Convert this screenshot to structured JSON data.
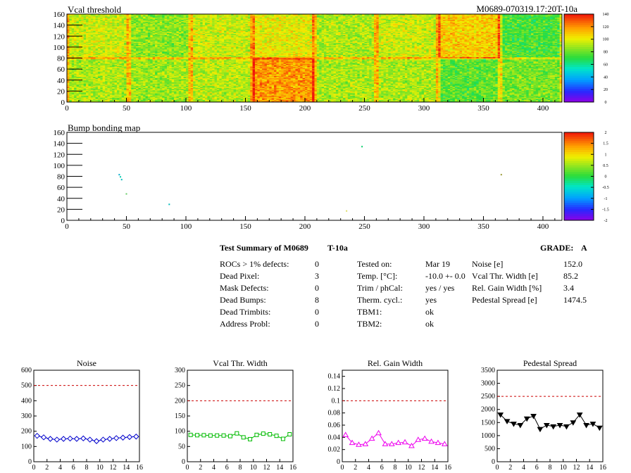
{
  "module_id": "M0689-070319.17:20T-10a",
  "colors": {
    "dashed_ref": "#cc0000",
    "noise": "#0000cc",
    "vcal": "#00bb00",
    "gain": "#ee00ee",
    "pedestal": "#000000"
  },
  "chart_data": [
    {
      "type": "heatmap",
      "title": "Vcal threshold",
      "xlim": [
        0,
        416
      ],
      "ylim": [
        0,
        160
      ],
      "x_ticks": [
        "0",
        "50",
        "100",
        "150",
        "200",
        "250",
        "300",
        "350",
        "400"
      ],
      "y_ticks": [
        "0",
        "20",
        "40",
        "60",
        "80",
        "100",
        "120",
        "140",
        "160"
      ],
      "z_range": [
        0,
        140
      ],
      "palette_ticks": [
        "0",
        "20",
        "40",
        "60",
        "80",
        "100",
        "120",
        "140"
      ],
      "roc_mean_upper": [
        95,
        85,
        95,
        100,
        90,
        95,
        108,
        75
      ],
      "roc_mean_lower": [
        90,
        88,
        92,
        118,
        90,
        90,
        78,
        82
      ]
    },
    {
      "type": "heatmap",
      "title": "Bump bonding map",
      "xlim": [
        0,
        416
      ],
      "ylim": [
        0,
        160
      ],
      "x_ticks": [
        "0",
        "50",
        "100",
        "150",
        "200",
        "250",
        "300",
        "350",
        "400"
      ],
      "y_ticks": [
        "0",
        "20",
        "40",
        "60",
        "80",
        "100",
        "120",
        "140",
        "160"
      ],
      "z_range": [
        -2,
        2
      ],
      "palette_ticks": [
        "2",
        "1.5",
        "1",
        "0.5",
        "0",
        "-0.5",
        "-1",
        "-1.5",
        "-2"
      ],
      "points": [
        {
          "x": 44,
          "y": 83,
          "color": "#00aacc"
        },
        {
          "x": 45,
          "y": 79,
          "color": "#00ccaa"
        },
        {
          "x": 46,
          "y": 74,
          "color": "#00bbbb"
        },
        {
          "x": 50,
          "y": 48,
          "color": "#66cc66"
        },
        {
          "x": 86,
          "y": 29,
          "color": "#00bbbb"
        },
        {
          "x": 235,
          "y": 17,
          "color": "#dddd66"
        },
        {
          "x": 248,
          "y": 134,
          "color": "#00cc66"
        },
        {
          "x": 365,
          "y": 83,
          "color": "#999933"
        }
      ]
    },
    {
      "type": "line",
      "title": "Noise",
      "xlim": [
        0,
        16
      ],
      "ylim": [
        0,
        600
      ],
      "x_ticks": [
        "0",
        "2",
        "4",
        "6",
        "8",
        "10",
        "12",
        "14",
        "16"
      ],
      "y_ticks": [
        "0",
        "100",
        "200",
        "300",
        "400",
        "500",
        "600"
      ],
      "ref_line": 500,
      "x": [
        0.5,
        1.5,
        2.5,
        3.5,
        4.5,
        5.5,
        6.5,
        7.5,
        8.5,
        9.5,
        10.5,
        11.5,
        12.5,
        13.5,
        14.5,
        15.5
      ],
      "values": [
        170,
        160,
        150,
        145,
        150,
        152,
        150,
        153,
        145,
        135,
        145,
        150,
        155,
        158,
        162,
        165
      ],
      "marker": "diamond"
    },
    {
      "type": "line",
      "title": "Vcal Thr. Width",
      "xlim": [
        0,
        16
      ],
      "ylim": [
        0,
        300
      ],
      "x_ticks": [
        "0",
        "2",
        "4",
        "6",
        "8",
        "10",
        "12",
        "14",
        "16"
      ],
      "y_ticks": [
        "0",
        "50",
        "100",
        "150",
        "200",
        "250",
        "300"
      ],
      "ref_line": 200,
      "x": [
        0.5,
        1.5,
        2.5,
        3.5,
        4.5,
        5.5,
        6.5,
        7.5,
        8.5,
        9.5,
        10.5,
        11.5,
        12.5,
        13.5,
        14.5,
        15.5
      ],
      "values": [
        88,
        87,
        87,
        86,
        86,
        86,
        84,
        93,
        80,
        74,
        88,
        92,
        90,
        85,
        75,
        90
      ],
      "marker": "square"
    },
    {
      "type": "line",
      "title": "Rel. Gain Width",
      "xlim": [
        0,
        16
      ],
      "ylim": [
        0,
        0.15
      ],
      "x_ticks": [
        "0",
        "2",
        "4",
        "6",
        "8",
        "10",
        "12",
        "14",
        "16"
      ],
      "y_ticks": [
        "0",
        "0.02",
        "0.04",
        "0.06",
        "0.08",
        "0.1",
        "0.12",
        "0.14"
      ],
      "ref_line": 0.1,
      "x": [
        0.5,
        1.5,
        2.5,
        3.5,
        4.5,
        5.5,
        6.5,
        7.5,
        8.5,
        9.5,
        10.5,
        11.5,
        12.5,
        13.5,
        14.5,
        15.5
      ],
      "values": [
        0.044,
        0.031,
        0.028,
        0.029,
        0.038,
        0.047,
        0.029,
        0.029,
        0.031,
        0.032,
        0.026,
        0.036,
        0.038,
        0.033,
        0.031,
        0.029
      ],
      "marker": "triangle-up"
    },
    {
      "type": "line",
      "title": "Pedestal Spread",
      "xlim": [
        0,
        16
      ],
      "ylim": [
        0,
        3500
      ],
      "x_ticks": [
        "0",
        "2",
        "4",
        "6",
        "8",
        "10",
        "12",
        "14",
        "16"
      ],
      "y_ticks": [
        "0",
        "500",
        "1000",
        "1500",
        "2000",
        "2500",
        "3000",
        "3500"
      ],
      "ref_line": 2500,
      "x": [
        0.5,
        1.5,
        2.5,
        3.5,
        4.5,
        5.5,
        6.5,
        7.5,
        8.5,
        9.5,
        10.5,
        11.5,
        12.5,
        13.5,
        14.5,
        15.5
      ],
      "values": [
        1800,
        1550,
        1450,
        1400,
        1650,
        1750,
        1250,
        1400,
        1350,
        1400,
        1350,
        1500,
        1800,
        1400,
        1450,
        1300
      ],
      "marker": "triangle-down"
    }
  ],
  "summary": {
    "title": "Test Summary of M0689",
    "temp_tag": "T-10a",
    "grade_label": "GRADE:",
    "grade": "A",
    "defects": [
      {
        "label": "ROCs > 1% defects:",
        "value": "0"
      },
      {
        "label": "Dead Pixel:",
        "value": "3"
      },
      {
        "label": "Mask Defects:",
        "value": "0"
      },
      {
        "label": "Dead Bumps:",
        "value": "8"
      },
      {
        "label": "Dead Trimbits:",
        "value": "0"
      },
      {
        "label": "Address Probl:",
        "value": "0"
      }
    ],
    "conditions": [
      {
        "label": "Tested on:",
        "value": "Mar 19"
      },
      {
        "label": "Temp. [°C]:",
        "value": "-10.0 +- 0.0"
      },
      {
        "label": "Trim / phCal:",
        "value": "yes / yes"
      },
      {
        "label": "Therm. cycl.:",
        "value": "yes"
      },
      {
        "label": "TBM1:",
        "value": "ok"
      },
      {
        "label": "TBM2:",
        "value": "ok"
      }
    ],
    "metrics": [
      {
        "label": "Noise [e]",
        "value": "152.0"
      },
      {
        "label": "Vcal Thr. Width [e]",
        "value": "85.2"
      },
      {
        "label": "Rel. Gain Width [%]",
        "value": "3.4"
      },
      {
        "label": "Pedestal Spread [e]",
        "value": "1474.5"
      }
    ]
  }
}
